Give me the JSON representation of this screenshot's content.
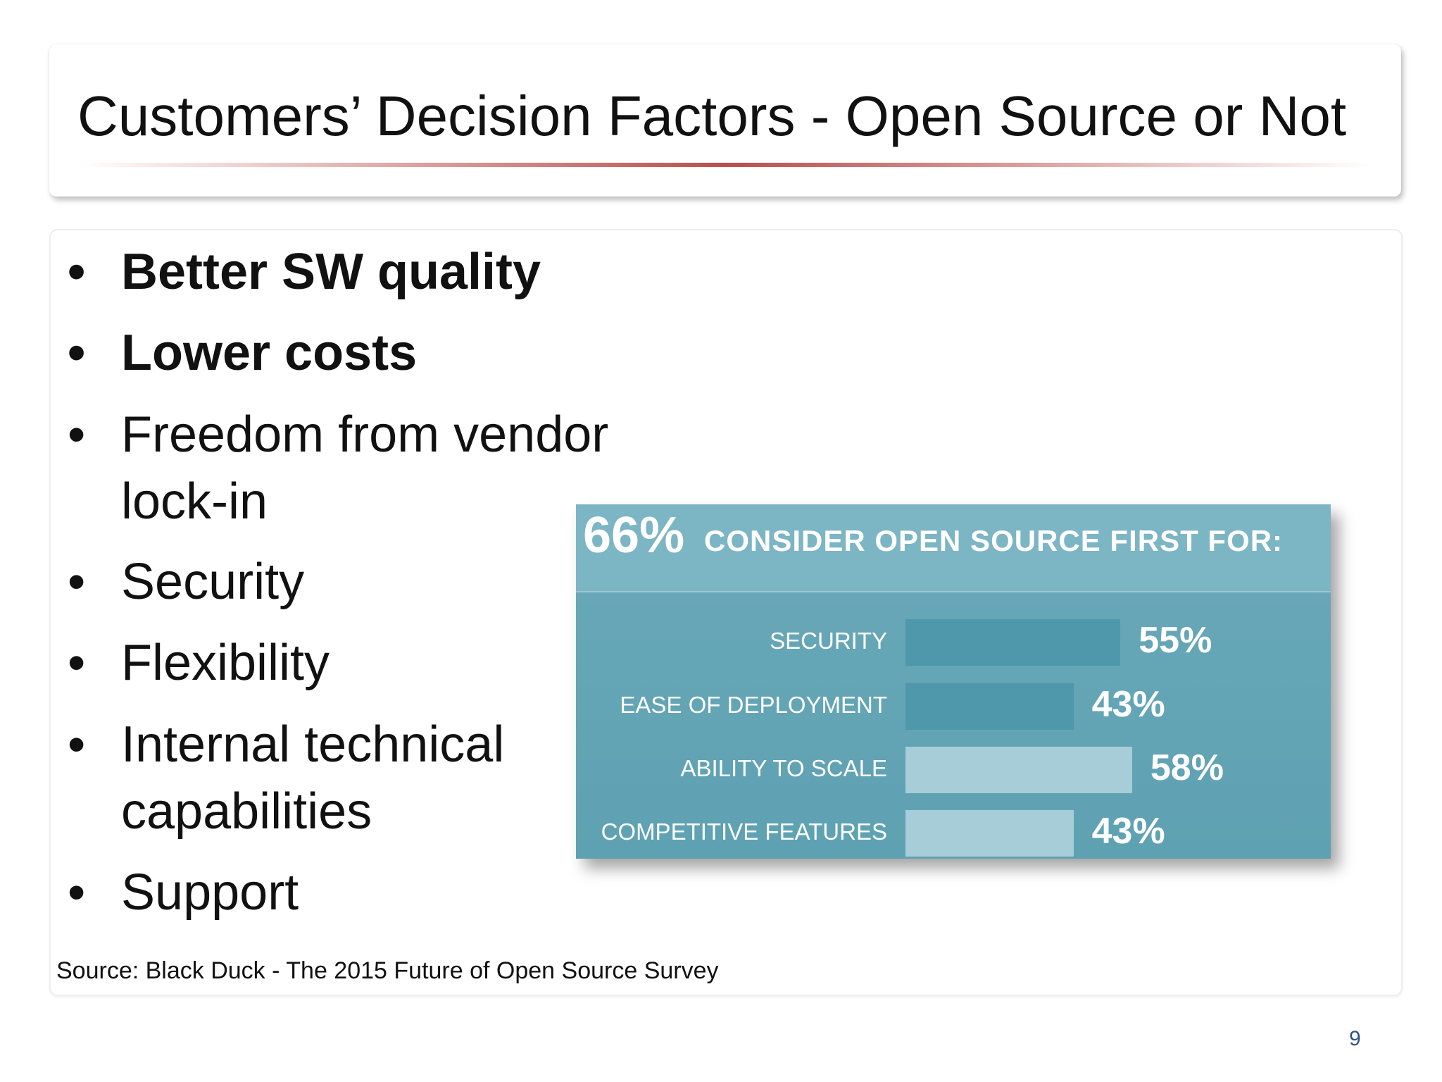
{
  "slide": {
    "title": "Customers’ Decision Factors - Open Source or Not",
    "bullets": [
      {
        "text": "Better SW quality",
        "bold": true
      },
      {
        "text": "Lower costs",
        "bold": true
      },
      {
        "text": "Freedom from vendor lock-in",
        "bold": false
      },
      {
        "text": "Security",
        "bold": false
      },
      {
        "text": "Flexibility",
        "bold": false
      },
      {
        "text": "Internal technical capabilities",
        "bold": false
      },
      {
        "text": "Support",
        "bold": false
      }
    ],
    "source": "Source: Black Duck - The 2015 Future of Open Source Survey",
    "page_number": "9"
  },
  "infographic": {
    "headline_value": "66%",
    "headline_text": "CONSIDER OPEN SOURCE FIRST FOR:",
    "colors": {
      "background": "#62a3b4",
      "header": "#7cb5c4",
      "bar_dark": "#4f97ab",
      "bar_light": "#a6cdd8",
      "text": "#ffffff"
    },
    "rows": [
      {
        "label": "SECURITY",
        "value": 55,
        "value_label": "55%",
        "shade": "dark"
      },
      {
        "label": "EASE OF DEPLOYMENT",
        "value": 43,
        "value_label": "43%",
        "shade": "dark"
      },
      {
        "label": "ABILITY TO SCALE",
        "value": 58,
        "value_label": "58%",
        "shade": "light"
      },
      {
        "label": "COMPETITIVE FEATURES",
        "value": 43,
        "value_label": "43%",
        "shade": "light"
      }
    ]
  }
}
